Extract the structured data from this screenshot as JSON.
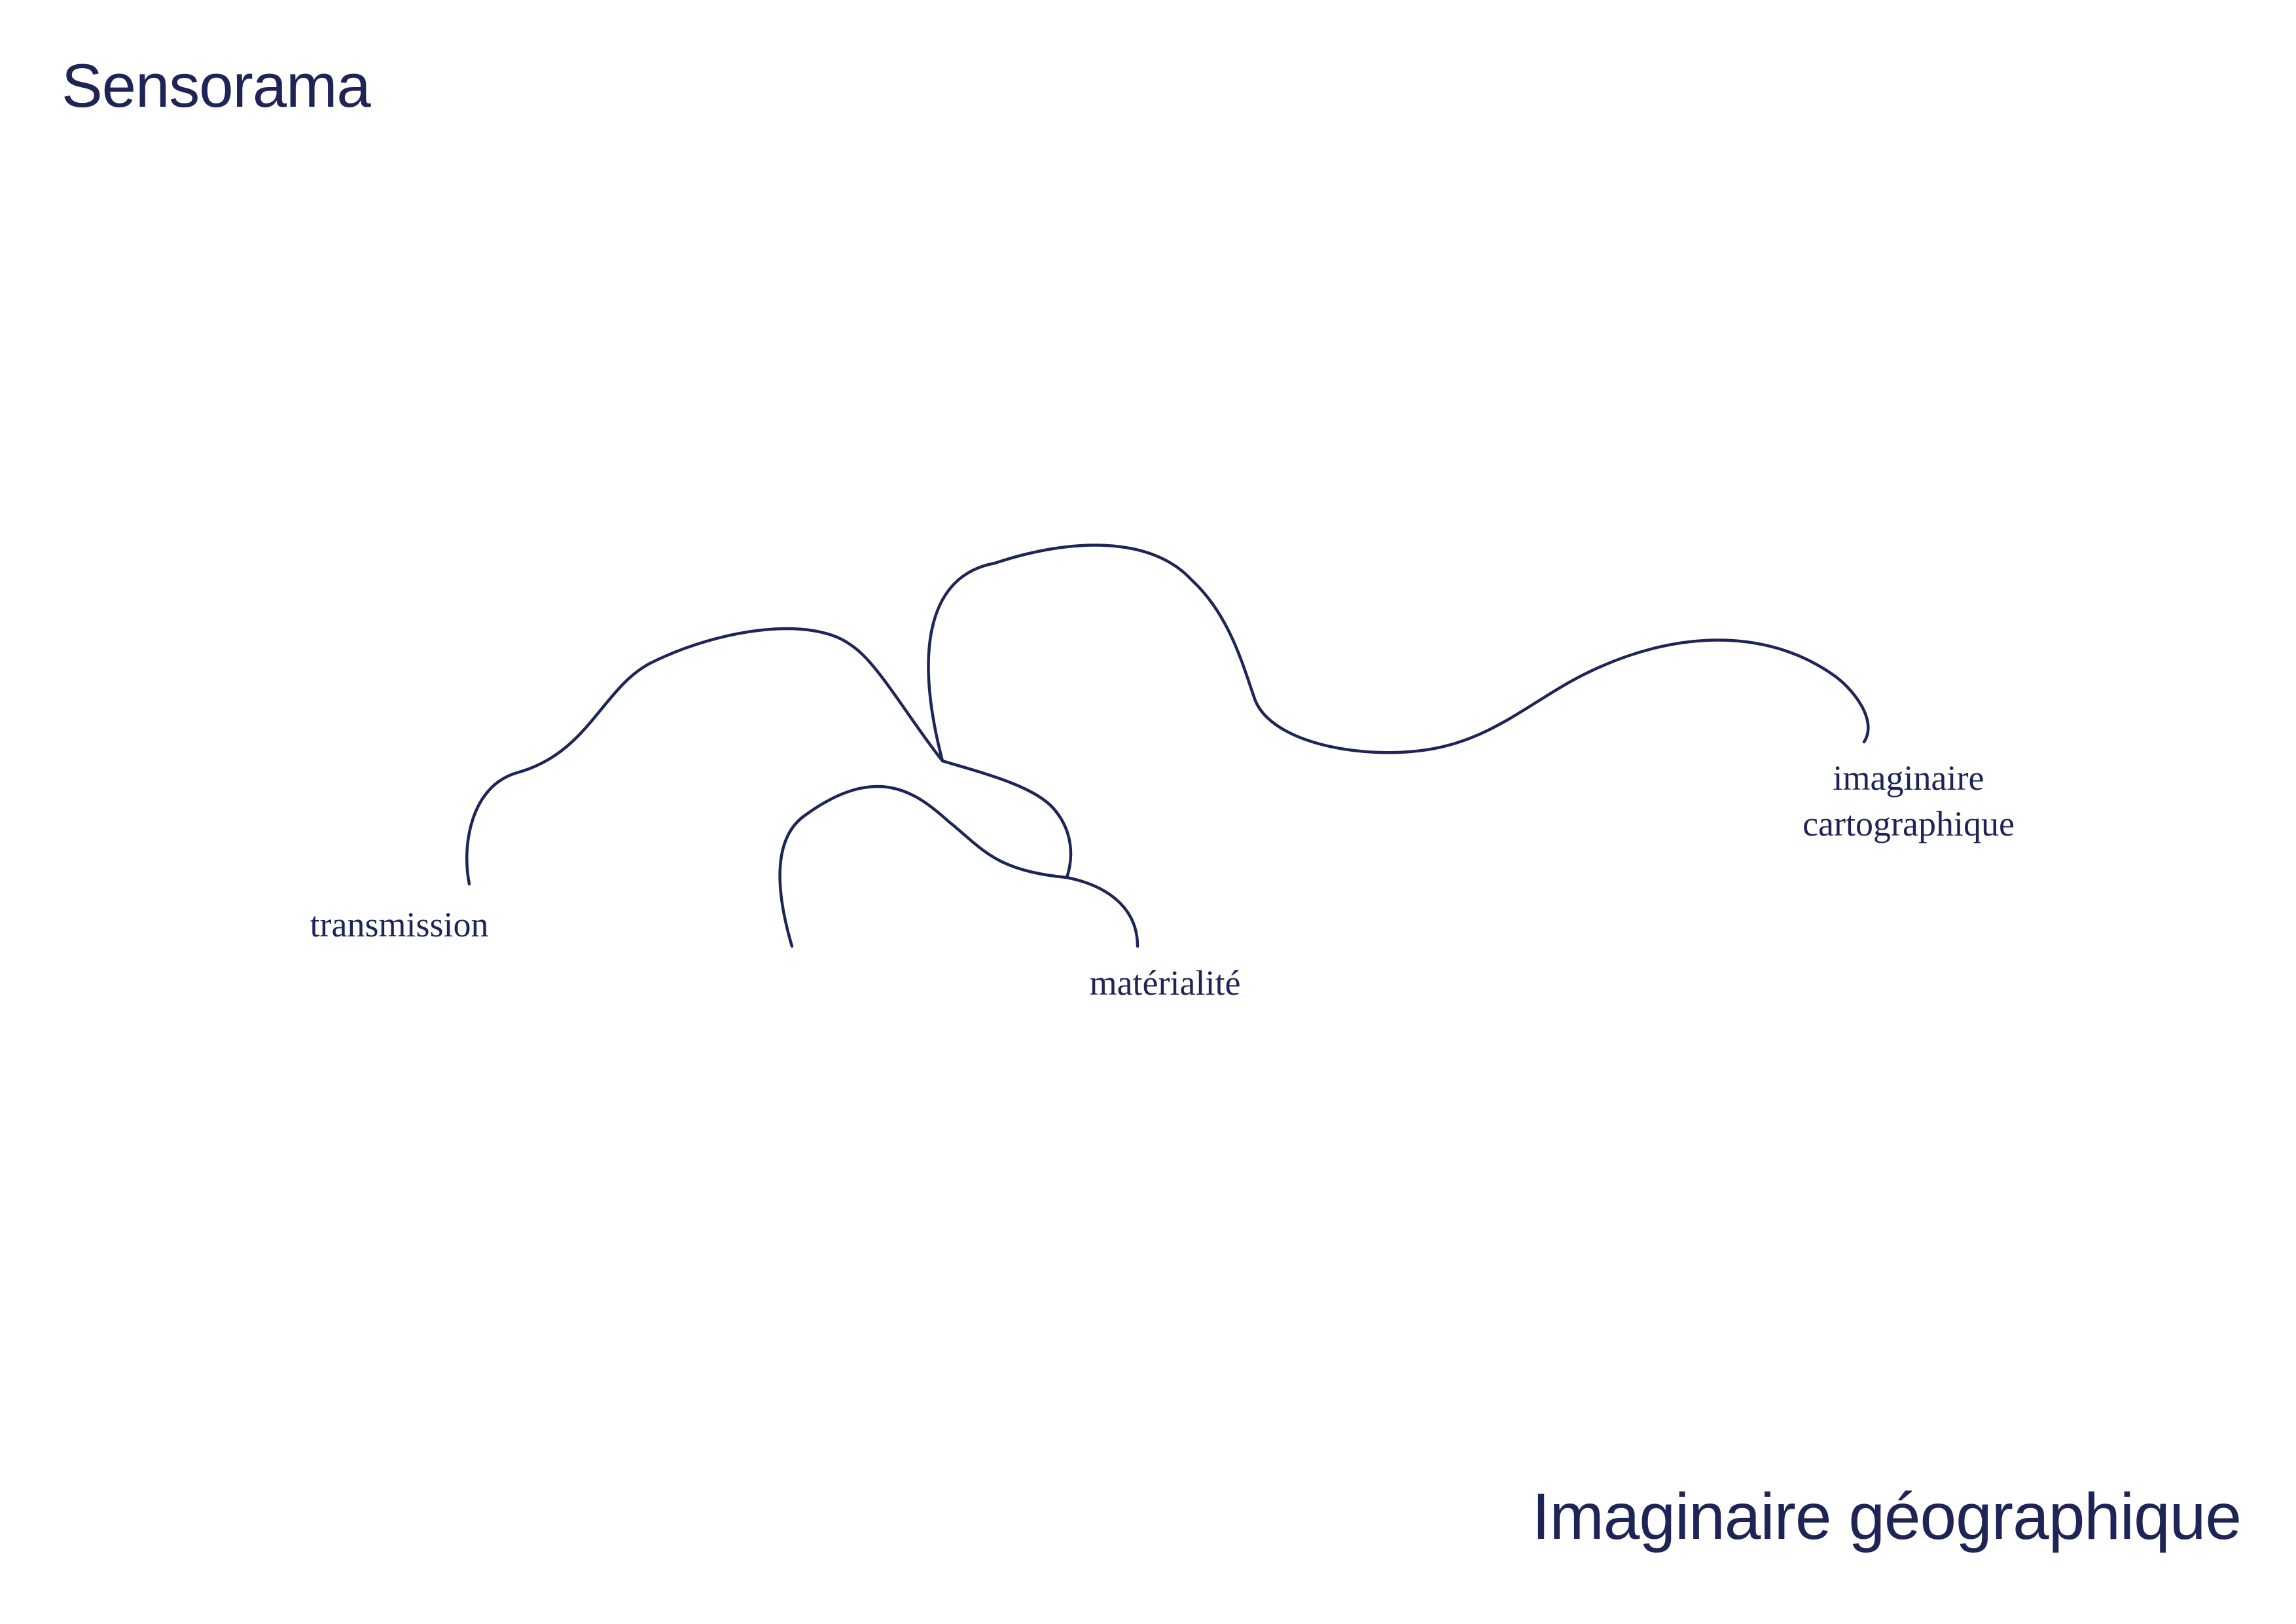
{
  "brand": "Sensorama",
  "title": "Imaginaire géographique",
  "colors": {
    "ink": "#1e2556",
    "background": "#ffffff"
  },
  "diagram": {
    "nodes": {
      "transmission": "transmission",
      "materialite": "matérialité",
      "imaginaire_line1": "imaginaire",
      "imaginaire_line2": "cartographique"
    }
  }
}
